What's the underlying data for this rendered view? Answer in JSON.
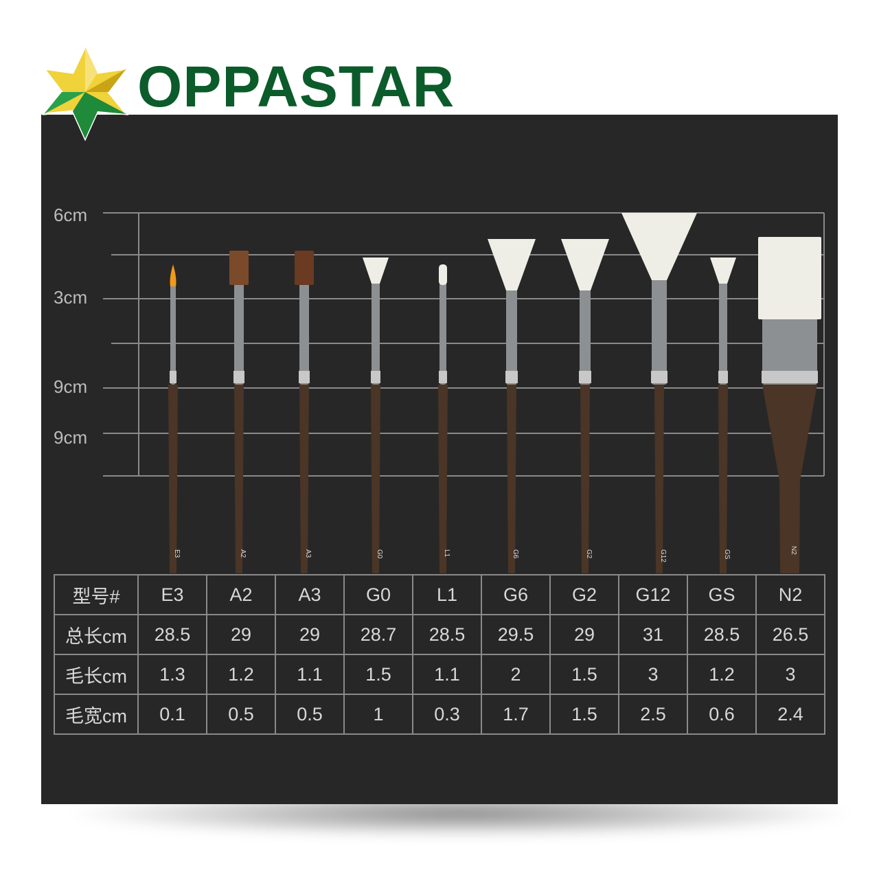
{
  "brand": {
    "name": "OPPASTAR",
    "green": "#0c5b2b",
    "gold": "#e8c21e"
  },
  "scale": {
    "labels": [
      "6cm",
      "3cm",
      "9cm",
      "9cm"
    ]
  },
  "brushes": [
    {
      "label": "E3",
      "shape": "round",
      "bristle": "#f09a1a"
    },
    {
      "label": "A2",
      "shape": "flat",
      "bristle": "#7a4a2a"
    },
    {
      "label": "A3",
      "shape": "flat",
      "bristle": "#6a3a22"
    },
    {
      "label": "G0",
      "shape": "fan-small",
      "bristle": "#efeee6"
    },
    {
      "label": "L1",
      "shape": "liner",
      "bristle": "#efeee6"
    },
    {
      "label": "G6",
      "shape": "fan",
      "bristle": "#efeee6"
    },
    {
      "label": "G2",
      "shape": "fan",
      "bristle": "#efeee6"
    },
    {
      "label": "G12",
      "shape": "fan-large",
      "bristle": "#efeee6"
    },
    {
      "label": "GS",
      "shape": "fan-small",
      "bristle": "#efeee6"
    },
    {
      "label": "N2",
      "shape": "wide",
      "bristle": "#efeee6"
    }
  ],
  "table": {
    "rows": [
      {
        "header": "型号#",
        "values": [
          "E3",
          "A2",
          "A3",
          "G0",
          "L1",
          "G6",
          "G2",
          "G12",
          "GS",
          "N2"
        ]
      },
      {
        "header": "总长cm",
        "values": [
          "28.5",
          "29",
          "29",
          "28.7",
          "28.5",
          "29.5",
          "29",
          "31",
          "28.5",
          "26.5"
        ]
      },
      {
        "header": "毛长cm",
        "values": [
          "1.3",
          "1.2",
          "1.1",
          "1.5",
          "1.1",
          "2",
          "1.5",
          "3",
          "1.2",
          "3"
        ]
      },
      {
        "header": "毛宽cm",
        "values": [
          "0.1",
          "0.5",
          "0.5",
          "1",
          "0.3",
          "1.7",
          "1.5",
          "2.5",
          "0.6",
          "2.4"
        ]
      }
    ]
  }
}
